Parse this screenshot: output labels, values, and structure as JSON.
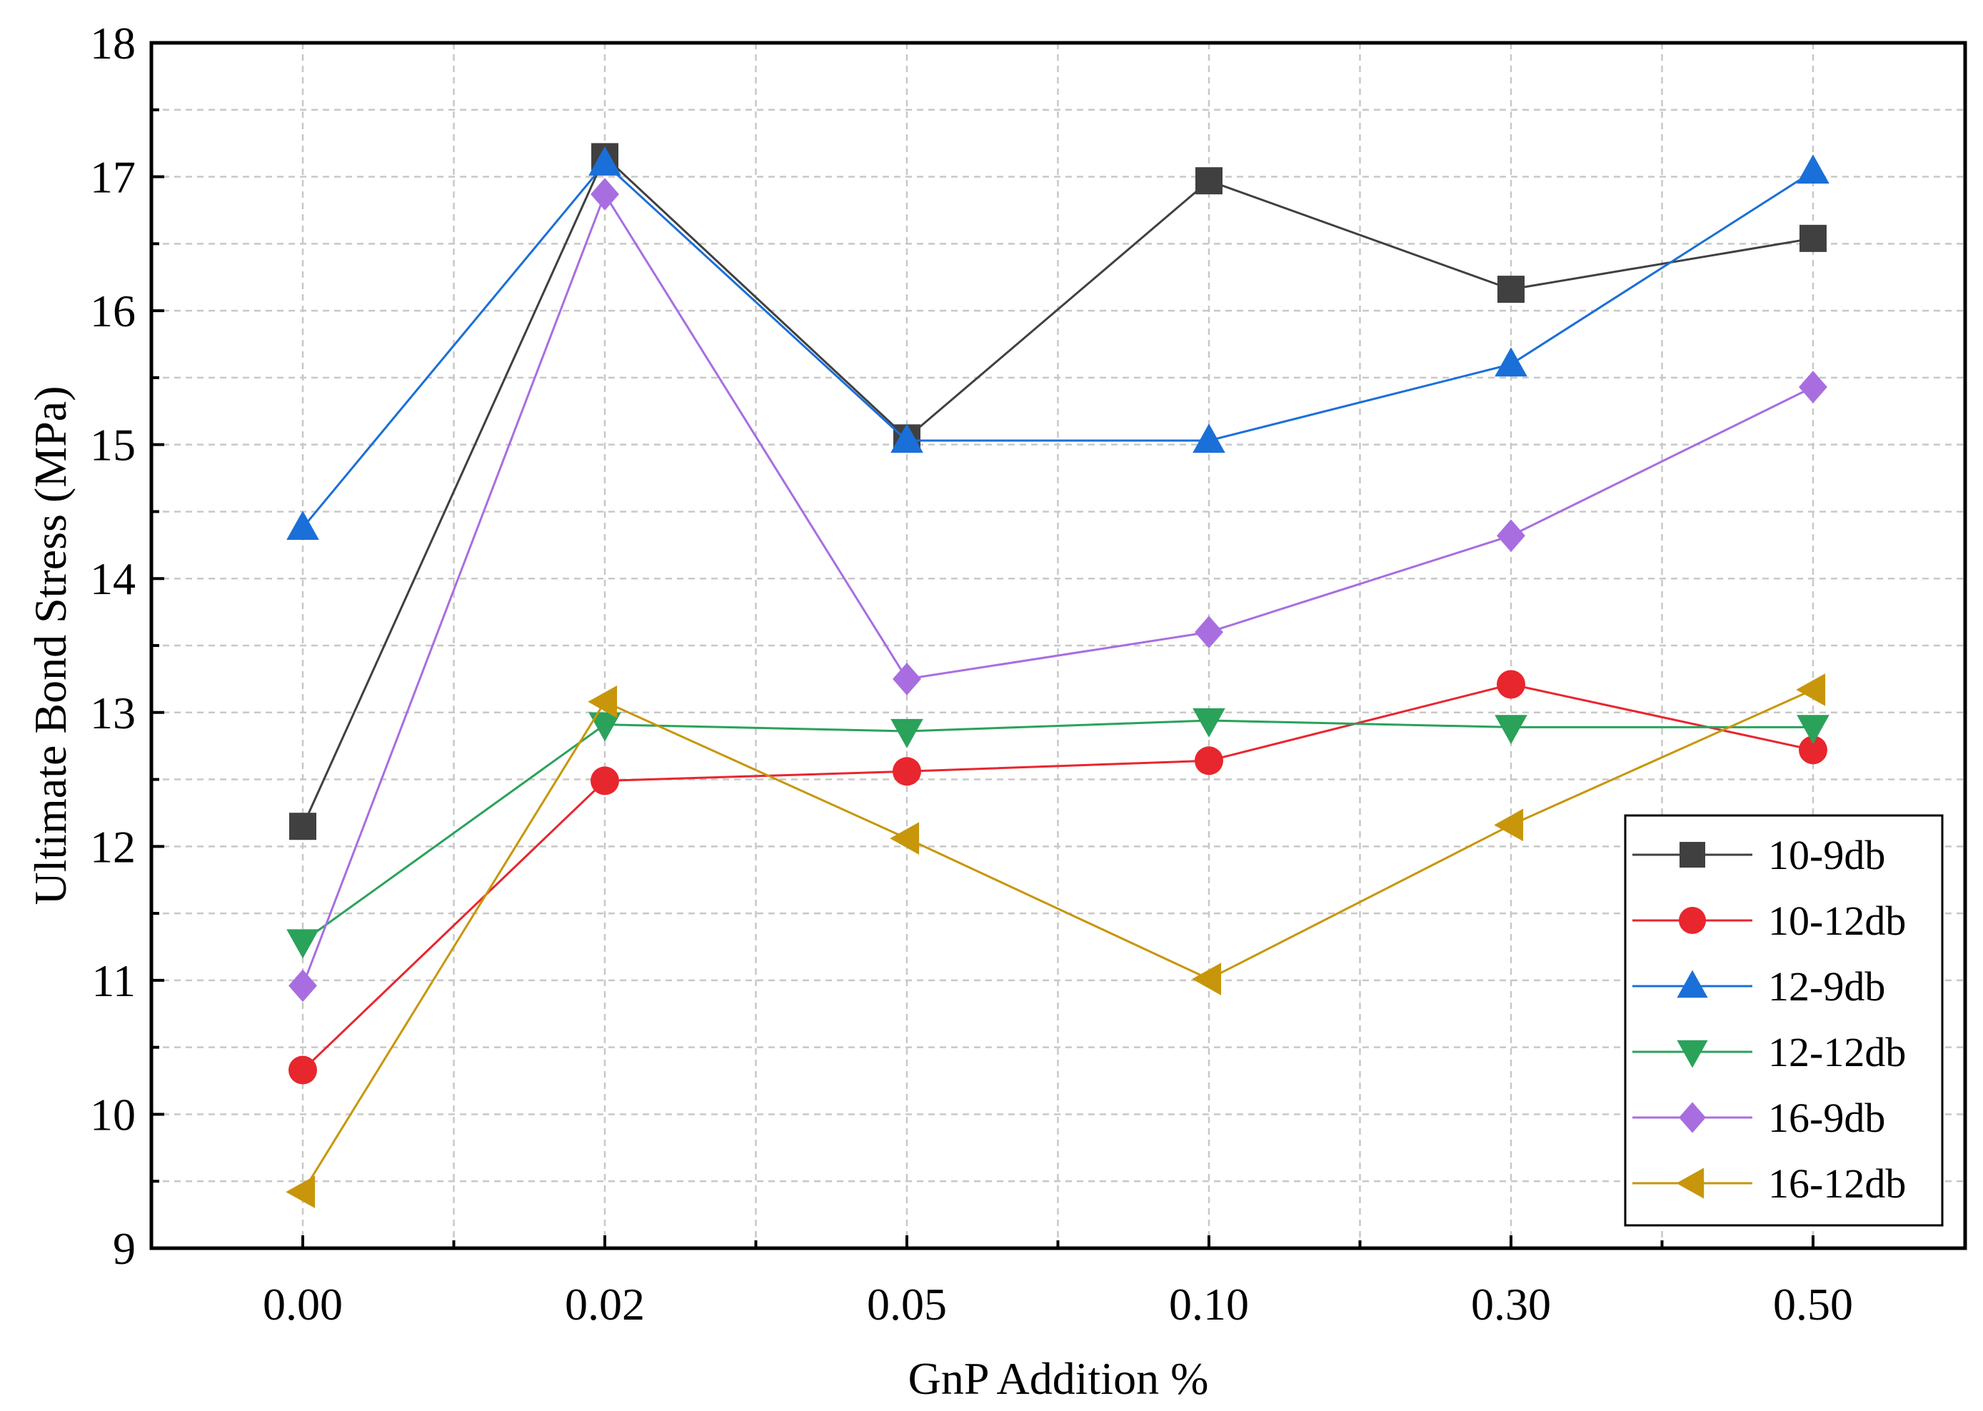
{
  "chart_data": {
    "type": "line",
    "title": "",
    "xlabel": "GnP Addition %",
    "ylabel": "Ultimate Bond Stress (MPa)",
    "categories": [
      "0.00",
      "0.02",
      "0.05",
      "0.10",
      "0.30",
      "0.50"
    ],
    "ylim": [
      9,
      18
    ],
    "yticks": [
      9,
      10,
      11,
      12,
      13,
      14,
      15,
      16,
      17,
      18
    ],
    "grid": true,
    "legend_position": "bottom-right",
    "series": [
      {
        "name": "10-9db",
        "color": "#404040",
        "marker": "square",
        "values": [
          12.15,
          17.15,
          15.05,
          16.97,
          16.16,
          16.54
        ]
      },
      {
        "name": "10-12db",
        "color": "#e8262e",
        "marker": "circle",
        "values": [
          10.33,
          12.49,
          12.56,
          12.64,
          13.21,
          12.72
        ]
      },
      {
        "name": "12-9db",
        "color": "#1a6fd8",
        "marker": "triangle-up",
        "values": [
          14.38,
          17.1,
          15.03,
          15.03,
          15.6,
          17.04
        ]
      },
      {
        "name": "12-12db",
        "color": "#2aa25a",
        "marker": "triangle-down",
        "values": [
          11.29,
          12.91,
          12.86,
          12.94,
          12.89,
          12.89
        ]
      },
      {
        "name": "16-9db",
        "color": "#a86ee0",
        "marker": "diamond",
        "values": [
          10.96,
          16.87,
          13.25,
          13.6,
          14.32,
          15.43
        ]
      },
      {
        "name": "16-12db",
        "color": "#c8960a",
        "marker": "triangle-left",
        "values": [
          9.42,
          13.08,
          12.06,
          11.01,
          12.16,
          13.17
        ]
      }
    ]
  }
}
